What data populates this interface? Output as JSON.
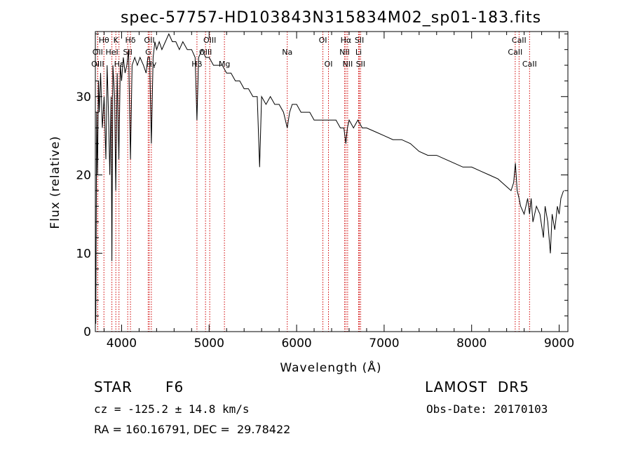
{
  "chart_data": {
    "type": "line",
    "title": "spec-57757-HD103843N315834M02_sp01-183.fits",
    "xlabel": "Wavelength (Å)",
    "ylabel": "Flux (relative)",
    "xlim": [
      3700,
      9100
    ],
    "ylim": [
      0,
      38.3
    ],
    "xticks": [
      4000,
      5000,
      6000,
      7000,
      8000,
      9000
    ],
    "yticks": [
      0,
      10,
      20,
      30
    ],
    "grid": false,
    "legend": "none",
    "series": [
      {
        "x": [
          3700,
          3705,
          3715,
          3725,
          3735,
          3745,
          3760,
          3780,
          3800,
          3820,
          3835,
          3850,
          3865,
          3880,
          3889,
          3900,
          3920,
          3933,
          3950,
          3968,
          3985,
          4000,
          4020,
          4040,
          4060,
          4080,
          4101,
          4120,
          4150,
          4180,
          4210,
          4250,
          4280,
          4300,
          4320,
          4340,
          4360,
          4380,
          4400,
          4430,
          4460,
          4500,
          4540,
          4580,
          4620,
          4660,
          4700,
          4750,
          4800,
          4840,
          4861,
          4880,
          4920,
          4960,
          5000,
          5050,
          5100,
          5150,
          5200,
          5250,
          5300,
          5350,
          5400,
          5450,
          5500,
          5550,
          5577,
          5600,
          5650,
          5700,
          5750,
          5800,
          5850,
          5893,
          5920,
          5950,
          6000,
          6050,
          6100,
          6150,
          6200,
          6250,
          6300,
          6350,
          6400,
          6450,
          6500,
          6540,
          6563,
          6580,
          6600,
          6650,
          6700,
          6750,
          6800,
          6900,
          7000,
          7100,
          7200,
          7300,
          7400,
          7500,
          7600,
          7700,
          7800,
          7900,
          8000,
          8100,
          8200,
          8300,
          8400,
          8450,
          8480,
          8500,
          8520,
          8542,
          8560,
          8600,
          8640,
          8662,
          8680,
          8700,
          8740,
          8780,
          8820,
          8840,
          8870,
          8900,
          8920,
          8950,
          8980,
          9000,
          9020,
          9050
        ],
        "y": [
          8,
          1,
          28,
          20,
          32,
          28,
          33,
          26,
          30,
          22,
          34,
          28,
          20,
          30,
          9,
          34,
          30,
          18,
          33,
          22,
          34,
          32,
          35,
          33,
          34,
          36,
          22,
          34,
          35,
          34,
          35,
          34,
          33,
          35,
          35,
          24,
          35,
          37,
          36,
          37,
          36,
          37,
          38,
          37,
          37,
          36,
          37,
          36,
          36,
          35,
          27,
          35,
          36,
          35,
          35,
          34,
          34,
          34,
          33,
          33,
          32,
          32,
          31,
          31,
          30,
          30,
          21,
          30,
          29,
          30,
          29,
          29,
          28,
          26,
          28,
          29,
          29,
          28,
          28,
          28,
          27,
          27,
          27,
          27,
          27,
          27,
          26,
          26,
          24,
          26,
          27,
          26,
          27,
          26,
          26,
          25.5,
          25,
          24.5,
          24.5,
          24,
          23,
          22.5,
          22.5,
          22,
          21.5,
          21,
          21,
          20.5,
          20,
          19.5,
          18.5,
          18,
          19,
          21.5,
          18,
          17,
          16,
          15,
          17,
          15,
          17,
          14,
          16,
          15,
          12,
          16,
          14,
          10,
          15,
          13,
          16,
          15,
          17,
          18
        ]
      }
    ],
    "lines": [
      {
        "label": "Hθ",
        "x": 3798,
        "row": 1
      },
      {
        "label": "OII",
        "x": 3727,
        "row": 2
      },
      {
        "label": "OIII",
        "x": 3727,
        "row": 3
      },
      {
        "label": "K",
        "x": 3934,
        "row": 1
      },
      {
        "label": "HeI",
        "x": 3889,
        "row": 2
      },
      {
        "label": "Hε",
        "x": 3970,
        "row": 3
      },
      {
        "label": "Hδ",
        "x": 4101,
        "row": 1
      },
      {
        "label": "SII",
        "x": 4070,
        "row": 2
      },
      {
        "label": "OII",
        "x": 4317,
        "row": 1
      },
      {
        "label": "G",
        "x": 4304,
        "row": 2
      },
      {
        "label": "Hγ",
        "x": 4340,
        "row": 3
      },
      {
        "label": "OIII",
        "x": 5007,
        "row": 1
      },
      {
        "label": "OIII",
        "x": 4959,
        "row": 2
      },
      {
        "label": "Hβ",
        "x": 4861,
        "row": 3
      },
      {
        "label": "Mg",
        "x": 5175,
        "row": 3
      },
      {
        "label": "Na",
        "x": 5893,
        "row": 2
      },
      {
        "label": "OI",
        "x": 6300,
        "row": 1
      },
      {
        "label": "OI",
        "x": 6364,
        "row": 3
      },
      {
        "label": "Hα",
        "x": 6563,
        "row": 1
      },
      {
        "label": "NII",
        "x": 6548,
        "row": 2
      },
      {
        "label": "NII",
        "x": 6583,
        "row": 3
      },
      {
        "label": "SII",
        "x": 6717,
        "row": 1
      },
      {
        "label": "Li",
        "x": 6708,
        "row": 2
      },
      {
        "label": "SII",
        "x": 6731,
        "row": 3
      },
      {
        "label": "CaII",
        "x": 8542,
        "row": 1
      },
      {
        "label": "CaII",
        "x": 8498,
        "row": 2
      },
      {
        "label": "CaII",
        "x": 8662,
        "row": 3
      }
    ]
  },
  "info": {
    "object_class": "STAR",
    "subclass": "F6",
    "survey": "LAMOST  DR5",
    "cz": "cz = -125.2 ± 14.8 km/s",
    "obs_date": "Obs-Date: 20170103",
    "radec": "RA = 160.16791, DEC =  29.78422"
  },
  "colors": {
    "axis": "#000000",
    "spectrum": "#000000",
    "line_marker": "#d00000"
  }
}
